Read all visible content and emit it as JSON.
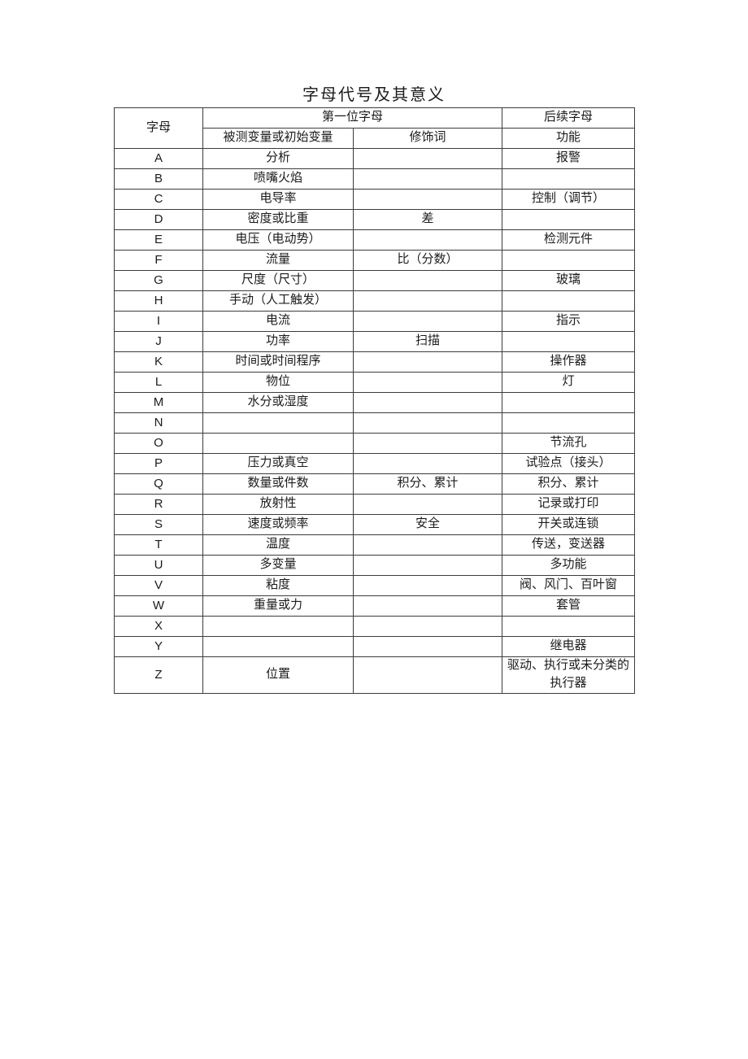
{
  "page": {
    "title": "字母代号及其意义"
  },
  "table": {
    "header": {
      "letter": "字母",
      "first_letter_group": "第一位字母",
      "succeeding_letter_group": "后续字母",
      "measured_variable": "被测变量或初始变量",
      "modifier": "修饰词",
      "function": "功能"
    },
    "rows": [
      {
        "letter": "A",
        "variable": "分析",
        "modifier": "",
        "function": "报警"
      },
      {
        "letter": "B",
        "variable": "喷嘴火焰",
        "modifier": "",
        "function": ""
      },
      {
        "letter": "C",
        "variable": "电导率",
        "modifier": "",
        "function": "控制（调节）"
      },
      {
        "letter": "D",
        "variable": "密度或比重",
        "modifier": "差",
        "function": ""
      },
      {
        "letter": "E",
        "variable": "电压（电动势）",
        "modifier": "",
        "function": "检测元件"
      },
      {
        "letter": "F",
        "variable": "流量",
        "modifier": "比（分数）",
        "function": ""
      },
      {
        "letter": "G",
        "variable": "尺度（尺寸）",
        "modifier": "",
        "function": "玻璃"
      },
      {
        "letter": "H",
        "variable": "手动（人工触发）",
        "modifier": "",
        "function": ""
      },
      {
        "letter": "I",
        "variable": "电流",
        "modifier": "",
        "function": "指示"
      },
      {
        "letter": "J",
        "variable": "功率",
        "modifier": "扫描",
        "function": ""
      },
      {
        "letter": "K",
        "variable": "时间或时间程序",
        "modifier": "",
        "function": "操作器"
      },
      {
        "letter": "L",
        "variable": "物位",
        "modifier": "",
        "function": "灯"
      },
      {
        "letter": "M",
        "variable": "水分或湿度",
        "modifier": "",
        "function": ""
      },
      {
        "letter": "N",
        "variable": "",
        "modifier": "",
        "function": ""
      },
      {
        "letter": "O",
        "variable": "",
        "modifier": "",
        "function": "节流孔"
      },
      {
        "letter": "P",
        "variable": "压力或真空",
        "modifier": "",
        "function": "试验点（接头）"
      },
      {
        "letter": "Q",
        "variable": "数量或件数",
        "modifier": "积分、累计",
        "function": "积分、累计"
      },
      {
        "letter": "R",
        "variable": "放射性",
        "modifier": "",
        "function": "记录或打印"
      },
      {
        "letter": "S",
        "variable": "速度或频率",
        "modifier": "安全",
        "function": "开关或连锁"
      },
      {
        "letter": "T",
        "variable": "温度",
        "modifier": "",
        "function": "传送，变送器"
      },
      {
        "letter": "U",
        "variable": "多变量",
        "modifier": "",
        "function": "多功能"
      },
      {
        "letter": "V",
        "variable": "粘度",
        "modifier": "",
        "function": "阀、风门、百叶窗"
      },
      {
        "letter": "W",
        "variable": "重量或力",
        "modifier": "",
        "function": "套管"
      },
      {
        "letter": "X",
        "variable": "",
        "modifier": "",
        "function": ""
      },
      {
        "letter": "Y",
        "variable": "",
        "modifier": "",
        "function": "继电器"
      },
      {
        "letter": "Z",
        "variable": "位置",
        "modifier": "",
        "function": "驱动、执行或未分类的执行器"
      }
    ]
  }
}
